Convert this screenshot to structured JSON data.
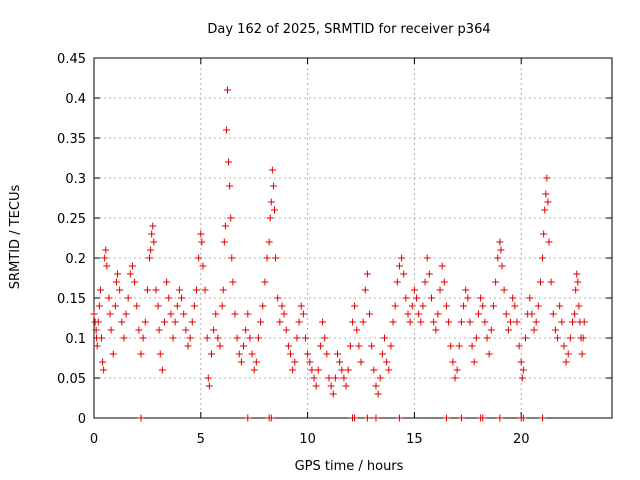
{
  "chart_data": {
    "type": "scatter",
    "title": "Day 162 of 2025, SRMTID for receiver p364",
    "xlabel": "GPS time / hours",
    "ylabel": "SRMTID / TECUs",
    "xlim": [
      0,
      24.25
    ],
    "ylim": [
      0,
      0.45
    ],
    "xticks": [
      0,
      5,
      10,
      15,
      20
    ],
    "xtick_labels": [
      "0",
      "5",
      "10",
      "15",
      "20"
    ],
    "yticks": [
      0,
      0.05,
      0.1,
      0.15,
      0.2,
      0.25,
      0.3,
      0.35,
      0.4,
      0.45
    ],
    "ytick_labels": [
      "0",
      "0.05",
      "0.1",
      "0.15",
      "0.2",
      "0.25",
      "0.3",
      "0.35",
      "0.4",
      "0.45"
    ],
    "grid": true,
    "marker": "+",
    "marker_color": "#e00000",
    "series": [
      {
        "name": "SRMTID",
        "points": [
          [
            0.0,
            0.13
          ],
          [
            0.05,
            0.12
          ],
          [
            0.1,
            0.11
          ],
          [
            0.12,
            0.1
          ],
          [
            0.15,
            0.09
          ],
          [
            0.2,
            0.12
          ],
          [
            0.25,
            0.14
          ],
          [
            0.3,
            0.16
          ],
          [
            0.35,
            0.1
          ],
          [
            0.4,
            0.07
          ],
          [
            0.45,
            0.06
          ],
          [
            0.5,
            0.2
          ],
          [
            0.55,
            0.21
          ],
          [
            0.6,
            0.19
          ],
          [
            0.7,
            0.15
          ],
          [
            0.75,
            0.13
          ],
          [
            0.8,
            0.11
          ],
          [
            0.9,
            0.08
          ],
          [
            1.0,
            0.14
          ],
          [
            1.05,
            0.17
          ],
          [
            1.1,
            0.18
          ],
          [
            1.2,
            0.16
          ],
          [
            1.3,
            0.12
          ],
          [
            1.4,
            0.1
          ],
          [
            1.5,
            0.13
          ],
          [
            1.6,
            0.15
          ],
          [
            1.7,
            0.18
          ],
          [
            1.8,
            0.19
          ],
          [
            1.9,
            0.17
          ],
          [
            2.0,
            0.14
          ],
          [
            2.1,
            0.11
          ],
          [
            2.2,
            0.08
          ],
          [
            2.3,
            0.1
          ],
          [
            2.4,
            0.12
          ],
          [
            2.5,
            0.16
          ],
          [
            2.6,
            0.2
          ],
          [
            2.65,
            0.21
          ],
          [
            2.7,
            0.23
          ],
          [
            2.75,
            0.24
          ],
          [
            2.8,
            0.22
          ],
          [
            2.9,
            0.16
          ],
          [
            3.0,
            0.14
          ],
          [
            3.05,
            0.11
          ],
          [
            3.1,
            0.08
          ],
          [
            3.2,
            0.06
          ],
          [
            3.3,
            0.12
          ],
          [
            3.4,
            0.17
          ],
          [
            3.5,
            0.15
          ],
          [
            3.6,
            0.13
          ],
          [
            3.7,
            0.1
          ],
          [
            3.8,
            0.12
          ],
          [
            3.9,
            0.14
          ],
          [
            4.0,
            0.16
          ],
          [
            4.1,
            0.15
          ],
          [
            4.2,
            0.13
          ],
          [
            4.3,
            0.11
          ],
          [
            4.4,
            0.09
          ],
          [
            4.5,
            0.1
          ],
          [
            4.6,
            0.12
          ],
          [
            4.7,
            0.14
          ],
          [
            4.8,
            0.16
          ],
          [
            4.9,
            0.2
          ],
          [
            5.0,
            0.23
          ],
          [
            5.05,
            0.22
          ],
          [
            5.1,
            0.19
          ],
          [
            5.2,
            0.16
          ],
          [
            5.3,
            0.1
          ],
          [
            5.35,
            0.05
          ],
          [
            5.4,
            0.04
          ],
          [
            5.5,
            0.08
          ],
          [
            5.6,
            0.11
          ],
          [
            5.7,
            0.13
          ],
          [
            5.8,
            0.1
          ],
          [
            5.9,
            0.09
          ],
          [
            6.0,
            0.14
          ],
          [
            6.05,
            0.16
          ],
          [
            6.1,
            0.22
          ],
          [
            6.15,
            0.24
          ],
          [
            6.2,
            0.36
          ],
          [
            6.25,
            0.41
          ],
          [
            6.3,
            0.32
          ],
          [
            6.35,
            0.29
          ],
          [
            6.4,
            0.25
          ],
          [
            6.45,
            0.2
          ],
          [
            6.5,
            0.17
          ],
          [
            6.6,
            0.13
          ],
          [
            6.7,
            0.1
          ],
          [
            6.8,
            0.08
          ],
          [
            6.9,
            0.07
          ],
          [
            7.0,
            0.09
          ],
          [
            7.1,
            0.11
          ],
          [
            7.2,
            0.13
          ],
          [
            7.3,
            0.1
          ],
          [
            7.4,
            0.08
          ],
          [
            7.5,
            0.06
          ],
          [
            7.6,
            0.07
          ],
          [
            7.7,
            0.1
          ],
          [
            7.8,
            0.12
          ],
          [
            7.9,
            0.14
          ],
          [
            8.0,
            0.17
          ],
          [
            8.1,
            0.2
          ],
          [
            8.2,
            0.22
          ],
          [
            8.25,
            0.25
          ],
          [
            8.3,
            0.27
          ],
          [
            8.35,
            0.31
          ],
          [
            8.4,
            0.29
          ],
          [
            8.45,
            0.26
          ],
          [
            8.5,
            0.2
          ],
          [
            8.6,
            0.15
          ],
          [
            8.7,
            0.12
          ],
          [
            8.8,
            0.14
          ],
          [
            8.9,
            0.13
          ],
          [
            9.0,
            0.11
          ],
          [
            9.1,
            0.09
          ],
          [
            9.2,
            0.08
          ],
          [
            9.3,
            0.06
          ],
          [
            9.4,
            0.07
          ],
          [
            9.5,
            0.1
          ],
          [
            9.6,
            0.12
          ],
          [
            9.7,
            0.14
          ],
          [
            9.8,
            0.13
          ],
          [
            9.9,
            0.1
          ],
          [
            10.0,
            0.08
          ],
          [
            10.1,
            0.07
          ],
          [
            10.2,
            0.06
          ],
          [
            10.3,
            0.05
          ],
          [
            10.4,
            0.04
          ],
          [
            10.5,
            0.06
          ],
          [
            10.6,
            0.09
          ],
          [
            10.7,
            0.12
          ],
          [
            10.8,
            0.1
          ],
          [
            10.9,
            0.08
          ],
          [
            11.0,
            0.05
          ],
          [
            11.1,
            0.04
          ],
          [
            11.2,
            0.03
          ],
          [
            11.3,
            0.05
          ],
          [
            11.4,
            0.08
          ],
          [
            11.5,
            0.07
          ],
          [
            11.6,
            0.06
          ],
          [
            11.7,
            0.05
          ],
          [
            11.8,
            0.04
          ],
          [
            11.9,
            0.06
          ],
          [
            12.0,
            0.09
          ],
          [
            12.1,
            0.12
          ],
          [
            12.2,
            0.14
          ],
          [
            12.3,
            0.11
          ],
          [
            12.4,
            0.09
          ],
          [
            12.5,
            0.07
          ],
          [
            12.6,
            0.12
          ],
          [
            12.7,
            0.16
          ],
          [
            12.8,
            0.18
          ],
          [
            12.9,
            0.13
          ],
          [
            13.0,
            0.09
          ],
          [
            13.1,
            0.06
          ],
          [
            13.2,
            0.04
          ],
          [
            13.3,
            0.03
          ],
          [
            13.4,
            0.05
          ],
          [
            13.5,
            0.08
          ],
          [
            13.6,
            0.1
          ],
          [
            13.7,
            0.07
          ],
          [
            13.8,
            0.06
          ],
          [
            13.9,
            0.09
          ],
          [
            14.0,
            0.12
          ],
          [
            14.1,
            0.14
          ],
          [
            14.2,
            0.17
          ],
          [
            14.3,
            0.19
          ],
          [
            14.4,
            0.2
          ],
          [
            14.5,
            0.18
          ],
          [
            14.6,
            0.15
          ],
          [
            14.7,
            0.13
          ],
          [
            14.8,
            0.12
          ],
          [
            14.9,
            0.14
          ],
          [
            15.0,
            0.16
          ],
          [
            15.1,
            0.15
          ],
          [
            15.2,
            0.13
          ],
          [
            15.3,
            0.12
          ],
          [
            15.4,
            0.14
          ],
          [
            15.5,
            0.17
          ],
          [
            15.6,
            0.2
          ],
          [
            15.7,
            0.18
          ],
          [
            15.8,
            0.15
          ],
          [
            15.9,
            0.12
          ],
          [
            16.0,
            0.11
          ],
          [
            16.1,
            0.13
          ],
          [
            16.2,
            0.16
          ],
          [
            16.3,
            0.19
          ],
          [
            16.4,
            0.17
          ],
          [
            16.5,
            0.14
          ],
          [
            16.6,
            0.12
          ],
          [
            16.7,
            0.09
          ],
          [
            16.8,
            0.07
          ],
          [
            16.9,
            0.05
          ],
          [
            17.0,
            0.06
          ],
          [
            17.1,
            0.09
          ],
          [
            17.2,
            0.12
          ],
          [
            17.3,
            0.14
          ],
          [
            17.4,
            0.16
          ],
          [
            17.5,
            0.15
          ],
          [
            17.6,
            0.12
          ],
          [
            17.7,
            0.09
          ],
          [
            17.8,
            0.07
          ],
          [
            17.9,
            0.1
          ],
          [
            18.0,
            0.13
          ],
          [
            18.1,
            0.15
          ],
          [
            18.2,
            0.14
          ],
          [
            18.3,
            0.12
          ],
          [
            18.4,
            0.1
          ],
          [
            18.5,
            0.08
          ],
          [
            18.6,
            0.11
          ],
          [
            18.7,
            0.14
          ],
          [
            18.8,
            0.17
          ],
          [
            18.9,
            0.2
          ],
          [
            19.0,
            0.22
          ],
          [
            19.05,
            0.21
          ],
          [
            19.1,
            0.19
          ],
          [
            19.2,
            0.16
          ],
          [
            19.3,
            0.13
          ],
          [
            19.4,
            0.11
          ],
          [
            19.5,
            0.12
          ],
          [
            19.6,
            0.15
          ],
          [
            19.7,
            0.14
          ],
          [
            19.8,
            0.12
          ],
          [
            19.9,
            0.09
          ],
          [
            20.0,
            0.07
          ],
          [
            20.05,
            0.05
          ],
          [
            20.1,
            0.06
          ],
          [
            20.2,
            0.1
          ],
          [
            20.3,
            0.13
          ],
          [
            20.4,
            0.15
          ],
          [
            20.5,
            0.13
          ],
          [
            20.6,
            0.11
          ],
          [
            20.7,
            0.12
          ],
          [
            20.8,
            0.14
          ],
          [
            20.9,
            0.17
          ],
          [
            21.0,
            0.2
          ],
          [
            21.05,
            0.23
          ],
          [
            21.1,
            0.26
          ],
          [
            21.15,
            0.28
          ],
          [
            21.2,
            0.3
          ],
          [
            21.25,
            0.27
          ],
          [
            21.3,
            0.22
          ],
          [
            21.4,
            0.17
          ],
          [
            21.5,
            0.13
          ],
          [
            21.6,
            0.11
          ],
          [
            21.7,
            0.1
          ],
          [
            21.8,
            0.14
          ],
          [
            21.9,
            0.12
          ],
          [
            22.0,
            0.09
          ],
          [
            22.1,
            0.07
          ],
          [
            22.2,
            0.08
          ],
          [
            22.3,
            0.1
          ],
          [
            22.4,
            0.12
          ],
          [
            22.5,
            0.13
          ],
          [
            22.55,
            0.16
          ],
          [
            22.6,
            0.18
          ],
          [
            22.65,
            0.17
          ],
          [
            22.7,
            0.14
          ],
          [
            22.75,
            0.12
          ],
          [
            22.8,
            0.1
          ],
          [
            22.85,
            0.08
          ],
          [
            22.9,
            0.1
          ],
          [
            22.95,
            0.12
          ]
        ]
      }
    ],
    "zero_markers_x": [
      2.2,
      7.2,
      8.2,
      8.3,
      12.1,
      12.2,
      12.8,
      13.2,
      14.3,
      16.5,
      17.2,
      18.1,
      18.2,
      19.0,
      20.0,
      20.1,
      21.0
    ]
  }
}
